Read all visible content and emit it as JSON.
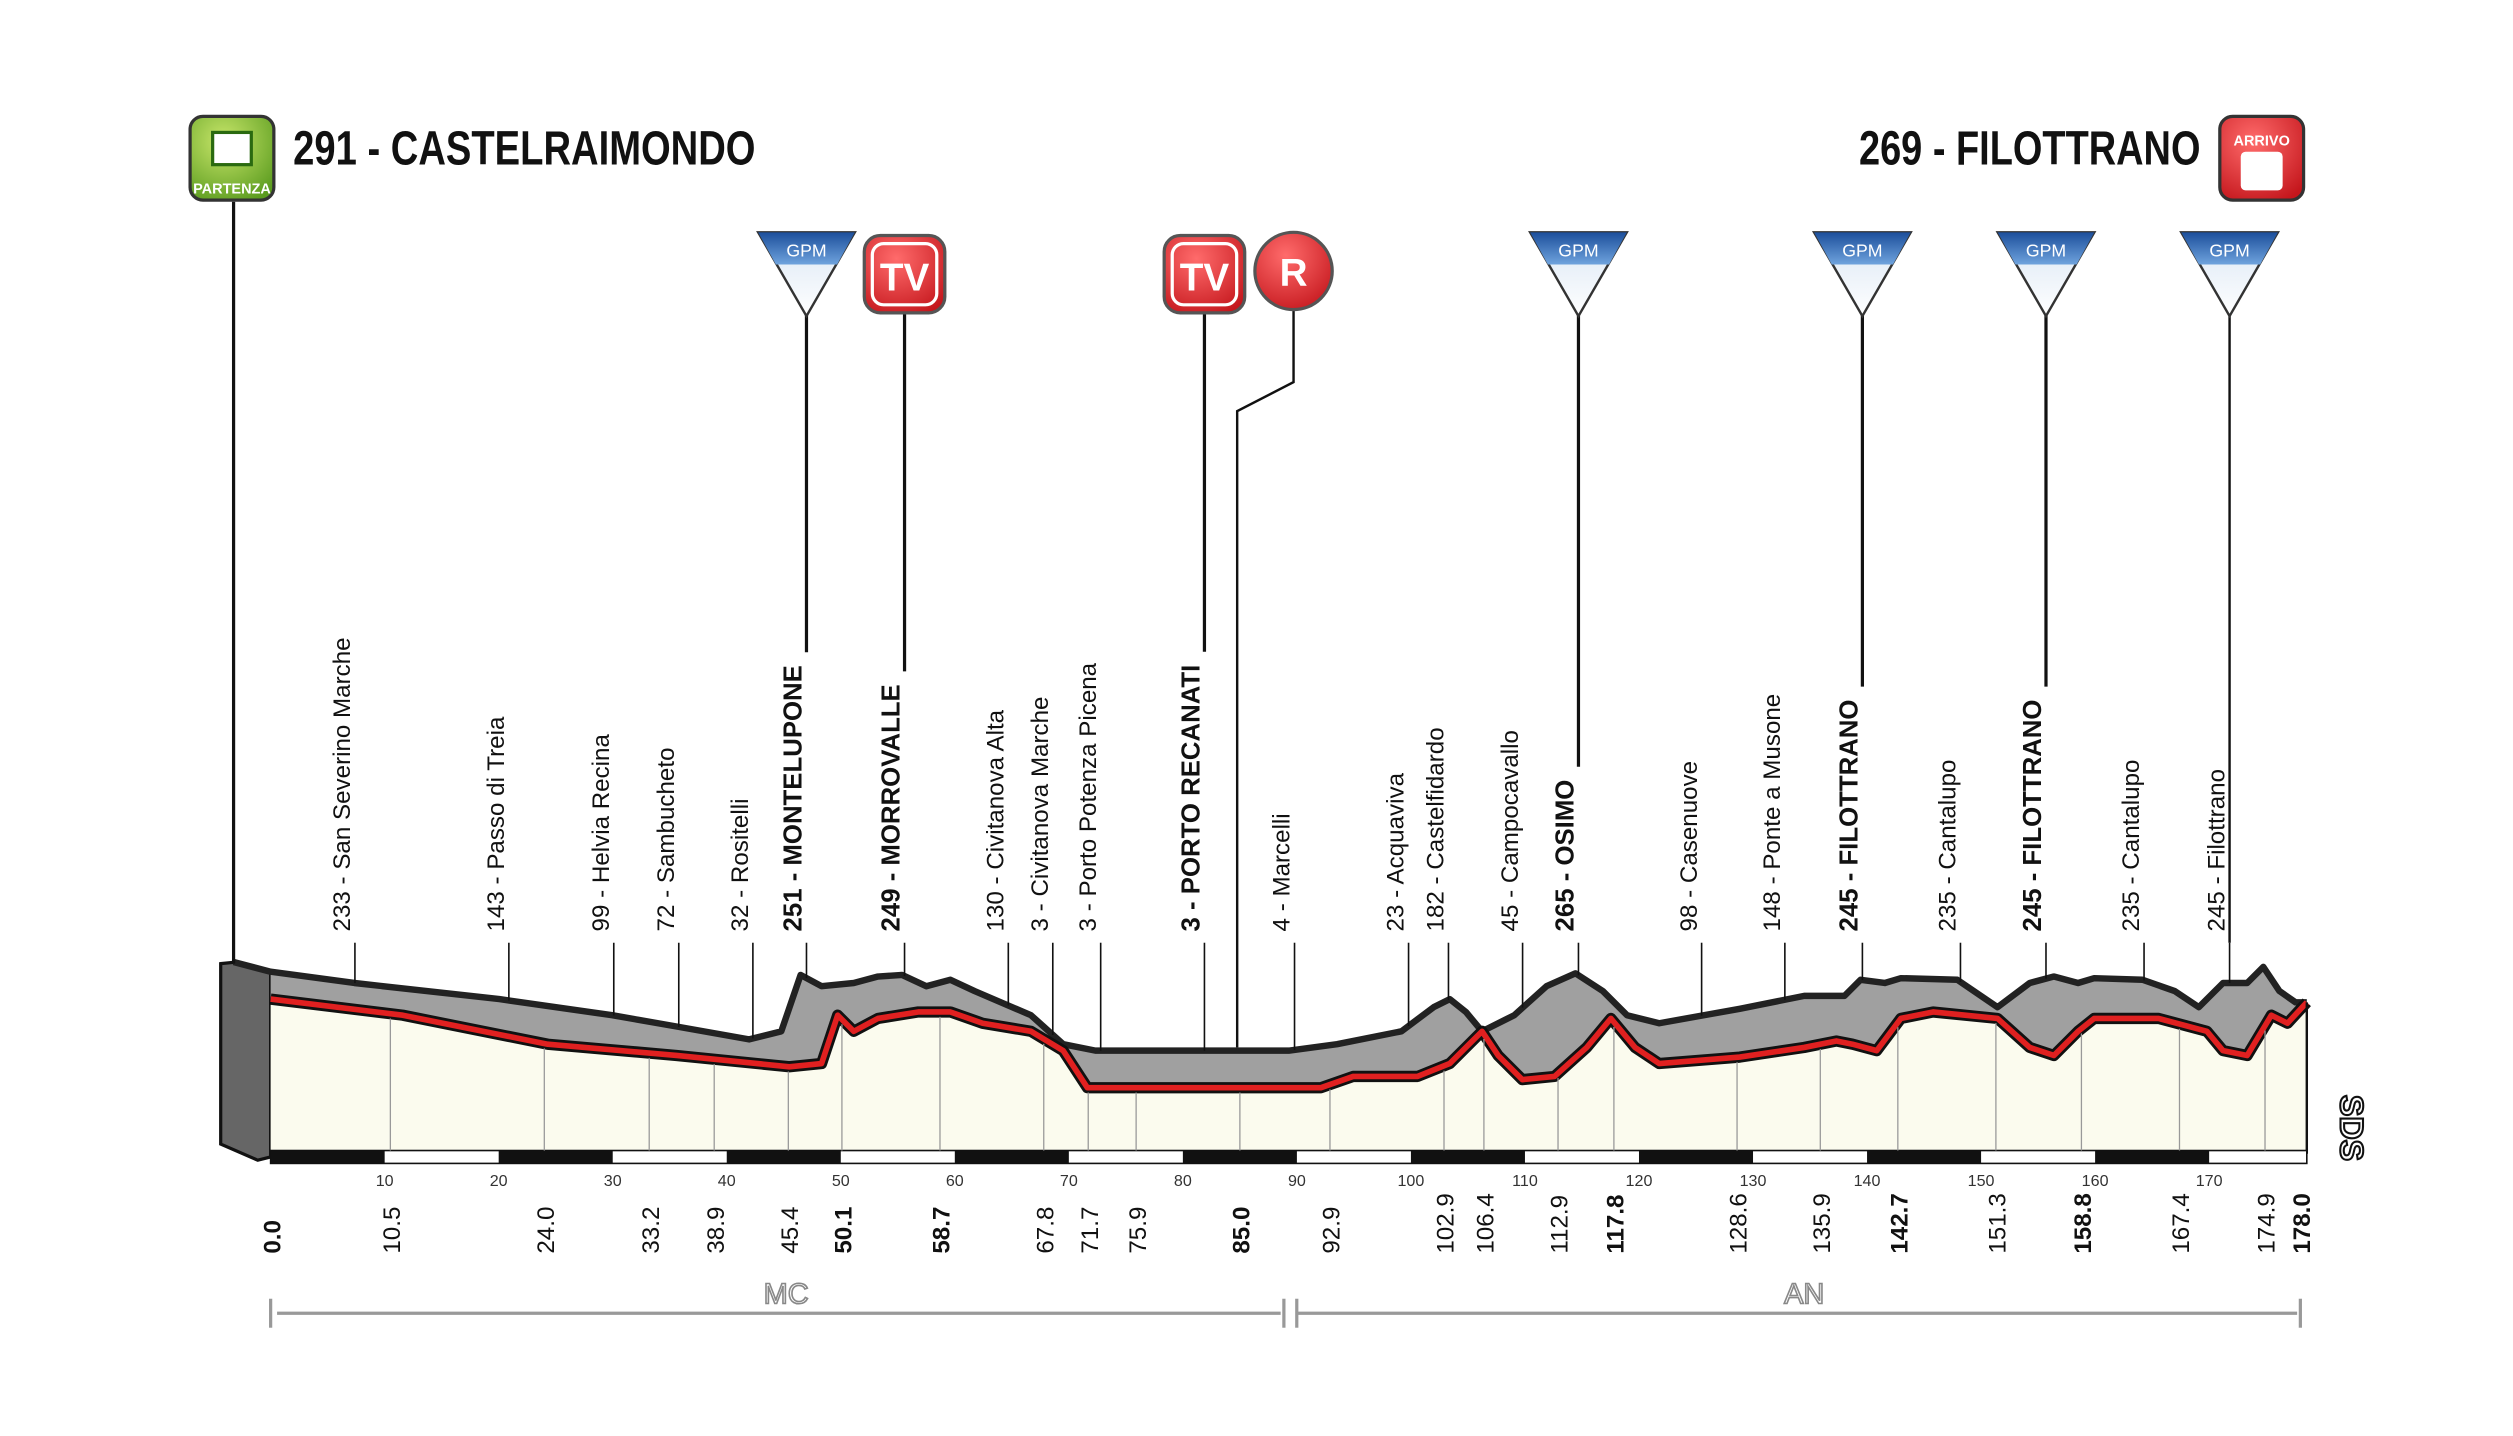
{
  "start": {
    "label": "291 - CASTELRAIMONDO",
    "badge": "PARTENZA",
    "km": "0.0"
  },
  "finish": {
    "label": "269 - FILOTTRANO",
    "badge": "ARRIVO",
    "km": "178.0"
  },
  "waypoints": [
    {
      "label": "233 - San Severino Marche",
      "km": "10.5"
    },
    {
      "label": "143 - Passo di Treia",
      "km": "24.0"
    },
    {
      "label": "99 - Helvia Recina",
      "km": "33.2"
    },
    {
      "label": "72 - Sambucheto",
      "km": "38.9"
    },
    {
      "label": "32 - Rositelli",
      "km": "45.4"
    },
    {
      "label": "251 - MONTELUPONE",
      "km": "50.1",
      "bold": true,
      "icons": [
        "GPM"
      ]
    },
    {
      "label": "249 - MORROVALLE",
      "km": "58.7",
      "bold": true,
      "icons": [
        "TV"
      ]
    },
    {
      "label": "130 - Civitanova Alta",
      "km": "67.8"
    },
    {
      "label": "3 - Civitanova Marche",
      "km": "71.7"
    },
    {
      "label": "3 - Porto Potenza Picena",
      "km": "75.9"
    },
    {
      "label": "3 - PORTO RECANATI",
      "km": "85.0",
      "bold": true,
      "icons": [
        "TV",
        "R"
      ]
    },
    {
      "label": "4 - Marcelli",
      "km": "92.9"
    },
    {
      "label": "23 - Acquaviva",
      "km": "102.9"
    },
    {
      "label": "182 - Castelfidardo",
      "km": "106.4"
    },
    {
      "label": "45 - Campocavallo",
      "km": "112.9"
    },
    {
      "label": "265 - OSIMO",
      "km": "117.8",
      "bold": true,
      "icons": [
        "GPM"
      ]
    },
    {
      "label": "98 - Casenuove",
      "km": "128.6"
    },
    {
      "label": "148 - Ponte a Musone",
      "km": "135.9"
    },
    {
      "label": "245 - FILOTTRANO",
      "km": "142.7",
      "bold": true,
      "icons": [
        "GPM"
      ]
    },
    {
      "label": "235 - Cantalupo",
      "km": "151.3"
    },
    {
      "label": "245 - FILOTTRANO",
      "km": "158.8",
      "bold": true,
      "icons": [
        "GPM"
      ]
    },
    {
      "label": "235 - Cantalupo",
      "km": "167.4"
    },
    {
      "label": "245 - Filottrano",
      "km": "174.9",
      "icons": [
        "GPM"
      ]
    }
  ],
  "axis_ticks": [
    "10",
    "20",
    "30",
    "40",
    "50",
    "60",
    "70",
    "80",
    "90",
    "100",
    "110",
    "120",
    "130",
    "140",
    "150",
    "160",
    "170"
  ],
  "provinces": [
    "MC",
    "AN"
  ],
  "logo": "SDS"
}
